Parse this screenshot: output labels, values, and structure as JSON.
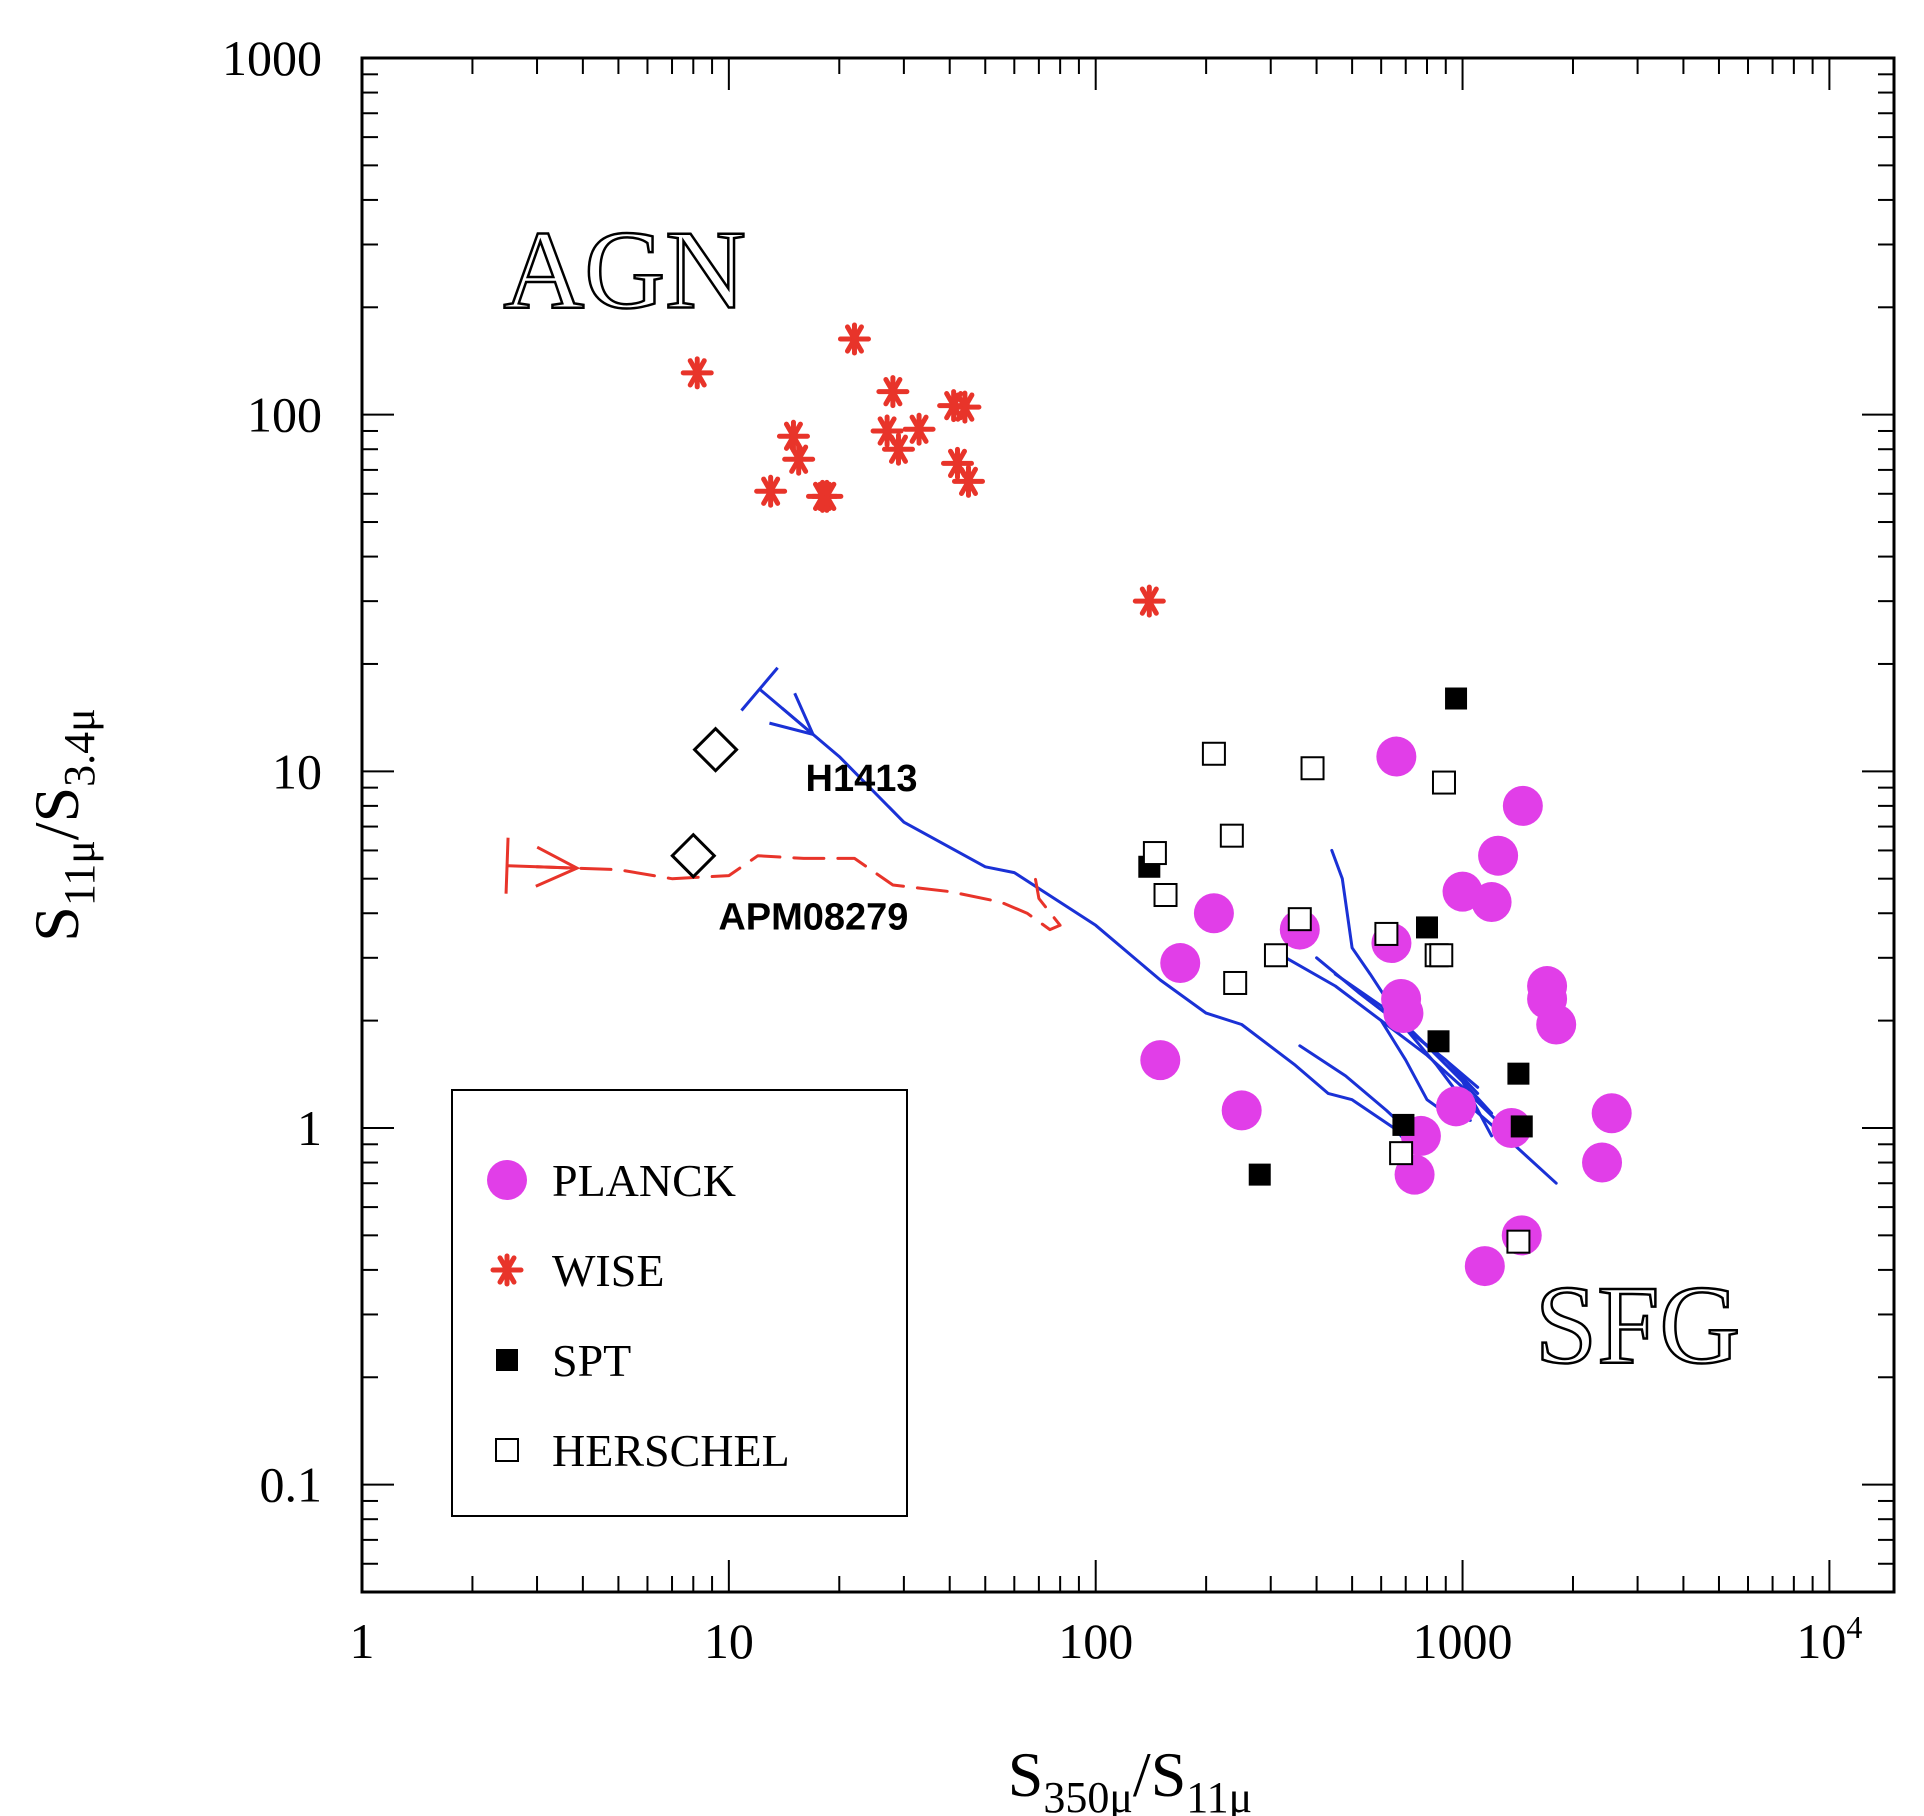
{
  "chart_data": {
    "type": "scatter",
    "x_scale": "log",
    "y_scale": "log",
    "xlim": [
      1,
      15000
    ],
    "ylim": [
      0.05,
      1000
    ],
    "xlabel": {
      "base": "S",
      "sub1": "350μ",
      "slash": "/",
      "base2": "S",
      "sub2": "11μ"
    },
    "ylabel": {
      "base": "S",
      "sub1": "11μ",
      "slash": "/",
      "base2": "S",
      "sub2": "3.4μ"
    },
    "x_ticks": [
      {
        "value": 1,
        "label": "1"
      },
      {
        "value": 10,
        "label": "10"
      },
      {
        "value": 100,
        "label": "100"
      },
      {
        "value": 1000,
        "label": "1000"
      },
      {
        "value": 10000,
        "label": "10",
        "sup": "4"
      }
    ],
    "y_ticks": [
      {
        "value": 0.1,
        "label": "0.1"
      },
      {
        "value": 1,
        "label": "1"
      },
      {
        "value": 10,
        "label": "10"
      },
      {
        "value": 100,
        "label": "100"
      },
      {
        "value": 1000,
        "label": "1000"
      }
    ],
    "region_labels": [
      {
        "text": "AGN",
        "x": 5.2,
        "y": 200
      },
      {
        "text": "SFG",
        "x": 3000,
        "y": 0.22
      }
    ],
    "annotations": [
      {
        "text": "H1413",
        "x": 9.2,
        "y": 11.5,
        "label_x": 23,
        "label_y": 8.8
      },
      {
        "text": "APM08279",
        "x": 8.0,
        "y": 5.8,
        "label_x": 17,
        "label_y": 3.6
      }
    ],
    "legend": [
      {
        "series": "PLANCK",
        "label": "PLANCK",
        "marker": "circle"
      },
      {
        "series": "WISE",
        "label": "WISE",
        "marker": "asterisk"
      },
      {
        "series": "SPT",
        "label": "SPT",
        "marker": "filled-square"
      },
      {
        "series": "HERSCHEL",
        "label": "HERSCHEL",
        "marker": "open-square"
      }
    ],
    "colors": {
      "planck": "#e13ee8",
      "wise": "#e8342a",
      "spt": "#000000",
      "herschel": "#000000",
      "track_blue": "#1a31d6",
      "track_red": "#e8342a"
    },
    "series": [
      {
        "name": "PLANCK",
        "points": [
          [
            660,
            11
          ],
          [
            640,
            3.3
          ],
          [
            680,
            2.3
          ],
          [
            690,
            2.1
          ],
          [
            210,
            4.0
          ],
          [
            170,
            2.9
          ],
          [
            360,
            3.6
          ],
          [
            150,
            1.55
          ],
          [
            250,
            1.12
          ],
          [
            960,
            1.15
          ],
          [
            770,
            0.95
          ],
          [
            740,
            0.74
          ],
          [
            1000,
            4.6
          ],
          [
            1200,
            4.3
          ],
          [
            1250,
            5.8
          ],
          [
            1460,
            8.0
          ],
          [
            1700,
            2.5
          ],
          [
            1700,
            2.3
          ],
          [
            1800,
            1.95
          ],
          [
            1360,
            1.0
          ],
          [
            2400,
            0.8
          ],
          [
            2550,
            1.1
          ],
          [
            1450,
            0.5
          ],
          [
            1150,
            0.41
          ]
        ]
      },
      {
        "name": "WISE",
        "points": [
          [
            8.2,
            131
          ],
          [
            22,
            163
          ],
          [
            28,
            116
          ],
          [
            15,
            87
          ],
          [
            15.5,
            75
          ],
          [
            13,
            61
          ],
          [
            18,
            59
          ],
          [
            18.5,
            59
          ],
          [
            27,
            90
          ],
          [
            29,
            80
          ],
          [
            33,
            91
          ],
          [
            41,
            106
          ],
          [
            44,
            105
          ],
          [
            42,
            73
          ],
          [
            45,
            65
          ],
          [
            140,
            30
          ]
        ]
      },
      {
        "name": "SPT",
        "points": [
          [
            140,
            5.4
          ],
          [
            960,
            16
          ],
          [
            800,
            3.65
          ],
          [
            860,
            1.75
          ],
          [
            690,
            1.02
          ],
          [
            1420,
            1.42
          ],
          [
            1450,
            1.01
          ],
          [
            280,
            0.74
          ]
        ]
      },
      {
        "name": "HERSCHEL",
        "points": [
          [
            210,
            11.2
          ],
          [
            390,
            10.2
          ],
          [
            890,
            9.3
          ],
          [
            145,
            5.9
          ],
          [
            235,
            6.6
          ],
          [
            155,
            4.5
          ],
          [
            360,
            3.85
          ],
          [
            620,
            3.5
          ],
          [
            850,
            3.05
          ],
          [
            875,
            3.05
          ],
          [
            310,
            3.05
          ],
          [
            240,
            2.55
          ],
          [
            680,
            0.85
          ],
          [
            1420,
            0.48
          ]
        ]
      }
    ],
    "tracks": [
      {
        "name": "blue-main",
        "color": "blue",
        "points": [
          [
            14,
            15
          ],
          [
            20,
            11
          ],
          [
            30,
            7.2
          ],
          [
            50,
            5.4
          ],
          [
            60,
            5.2
          ],
          [
            100,
            3.7
          ],
          [
            150,
            2.6
          ],
          [
            200,
            2.1
          ],
          [
            250,
            1.95
          ],
          [
            350,
            1.5
          ],
          [
            430,
            1.25
          ],
          [
            500,
            1.2
          ],
          [
            650,
            1.0
          ],
          [
            750,
            0.85
          ]
        ]
      },
      {
        "name": "blue-1",
        "color": "blue",
        "points": [
          [
            440,
            6.0
          ],
          [
            470,
            5.0
          ],
          [
            500,
            3.2
          ],
          [
            560,
            2.7
          ],
          [
            700,
            1.9
          ],
          [
            850,
            1.5
          ],
          [
            1000,
            1.2
          ],
          [
            1300,
            0.95
          ],
          [
            1800,
            0.7
          ]
        ]
      },
      {
        "name": "blue-2",
        "color": "blue",
        "points": [
          [
            330,
            3.0
          ],
          [
            450,
            2.5
          ],
          [
            600,
            2.0
          ],
          [
            800,
            1.6
          ],
          [
            1000,
            1.3
          ],
          [
            1300,
            1.0
          ]
        ]
      },
      {
        "name": "blue-3",
        "color": "blue",
        "points": [
          [
            400,
            3.0
          ],
          [
            520,
            2.4
          ],
          [
            700,
            1.9
          ],
          [
            900,
            1.55
          ],
          [
            1100,
            1.25
          ]
        ]
      },
      {
        "name": "blue-4",
        "color": "blue",
        "points": [
          [
            450,
            2.7
          ],
          [
            600,
            2.2
          ],
          [
            800,
            1.7
          ],
          [
            1000,
            1.35
          ],
          [
            1200,
            1.1
          ]
        ]
      },
      {
        "name": "blue-5",
        "color": "blue",
        "points": [
          [
            550,
            2.3
          ],
          [
            700,
            1.9
          ],
          [
            900,
            1.55
          ],
          [
            1100,
            1.3
          ]
        ]
      },
      {
        "name": "blue-6",
        "color": "blue",
        "points": [
          [
            650,
            2.1
          ],
          [
            800,
            1.7
          ],
          [
            1000,
            1.35
          ],
          [
            1200,
            0.95
          ]
        ]
      },
      {
        "name": "blue-7",
        "color": "blue",
        "points": [
          [
            600,
            2.0
          ],
          [
            700,
            1.55
          ],
          [
            800,
            1.2
          ],
          [
            900,
            1.1
          ],
          [
            1050,
            1.05
          ]
        ]
      },
      {
        "name": "blue-8",
        "color": "blue",
        "points": [
          [
            360,
            1.7
          ],
          [
            480,
            1.4
          ],
          [
            620,
            1.12
          ],
          [
            780,
            0.9
          ]
        ]
      },
      {
        "name": "red-dashed",
        "color": "red",
        "dashed": true,
        "points": [
          [
            3,
            5.4
          ],
          [
            5,
            5.3
          ],
          [
            7,
            5.0
          ],
          [
            10,
            5.1
          ],
          [
            12,
            5.8
          ],
          [
            16,
            5.7
          ],
          [
            22,
            5.7
          ],
          [
            28,
            4.8
          ],
          [
            40,
            4.6
          ],
          [
            55,
            4.3
          ],
          [
            65,
            4.0
          ],
          [
            75,
            3.6
          ],
          [
            80,
            3.7
          ],
          [
            70,
            4.4
          ],
          [
            68,
            5.2
          ]
        ]
      }
    ]
  }
}
